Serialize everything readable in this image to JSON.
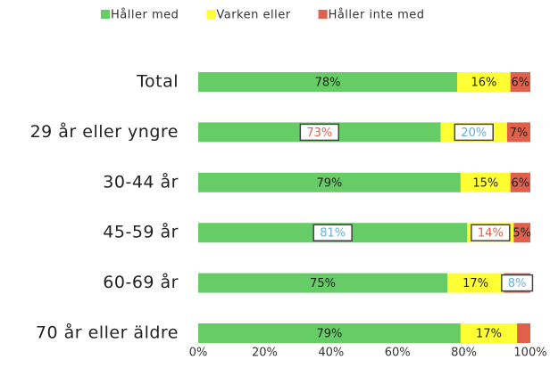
{
  "chart_data": {
    "type": "stacked-hbar",
    "categories": [
      "Total",
      "29 år eller yngre",
      "30-44 år",
      "45-59 år",
      "60-69 år",
      "70 år eller äldre"
    ],
    "series": [
      {
        "name": "Håller med",
        "color": "#66cc66",
        "values": [
          78,
          73,
          79,
          81,
          75,
          79
        ],
        "value_labels": [
          "78%",
          "73%",
          "79%",
          "81%",
          "75%",
          "79%"
        ],
        "label_highlight": [
          null,
          "#e0604c",
          null,
          "#6aaed6",
          null,
          null
        ]
      },
      {
        "name": "Varken eller",
        "color": "#ffff33",
        "values": [
          16,
          20,
          15,
          14,
          17,
          17
        ],
        "value_labels": [
          "16%",
          "20%",
          "15%",
          "14%",
          "17%",
          "17%"
        ],
        "label_highlight": [
          null,
          "#6aaed6",
          null,
          "#e0604c",
          null,
          null
        ]
      },
      {
        "name": "Håller inte med",
        "color": "#e0604c",
        "values": [
          6,
          7,
          6,
          5,
          8,
          4
        ],
        "value_labels": [
          "6%",
          "7%",
          "6%",
          "5%",
          "8%",
          null
        ],
        "label_highlight": [
          null,
          null,
          null,
          null,
          "#6aaed6",
          null
        ]
      }
    ],
    "xlim": [
      0,
      100
    ],
    "xticks": [
      {
        "value": 0,
        "label": "0%"
      },
      {
        "value": 20,
        "label": "20%"
      },
      {
        "value": 40,
        "label": "40%"
      },
      {
        "value": 60,
        "label": "60%"
      },
      {
        "value": 80,
        "label": "80%"
      },
      {
        "value": 100,
        "label": "100%"
      }
    ],
    "legend": "top"
  }
}
